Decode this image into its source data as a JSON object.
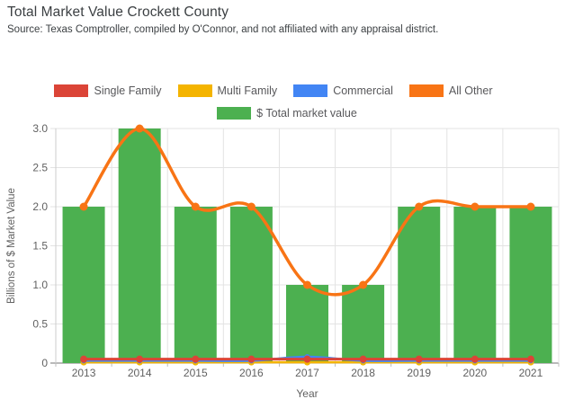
{
  "header": {
    "title": "Total Market Value Crockett County",
    "source": "Source: Texas Comptroller, compiled by O'Connor, and not affiliated with any appraisal district."
  },
  "legend": {
    "row1": [
      {
        "label": "Single Family",
        "color": "#DB4437"
      },
      {
        "label": "Multi Family",
        "color": "#F4B400"
      },
      {
        "label": "Commercial",
        "color": "#4285F4"
      },
      {
        "label": "All Other",
        "color": "#F87415"
      }
    ],
    "row2": [
      {
        "label": "$ Total market value",
        "color": "#4CB050"
      }
    ]
  },
  "chart_data": {
    "type": "combo-bar-line",
    "title": "Total Market Value Crockett County",
    "categories": [
      "2013",
      "2014",
      "2015",
      "2016",
      "2017",
      "2018",
      "2019",
      "2020",
      "2021"
    ],
    "bar_series": {
      "name": "$ Total market value",
      "color": "#4CB050",
      "values": [
        2.0,
        3.0,
        2.0,
        2.0,
        1.0,
        1.0,
        2.0,
        2.0,
        2.0
      ]
    },
    "line_series": [
      {
        "name": "Multi Family",
        "color": "#F4B400",
        "values": [
          0.01,
          0.01,
          0.01,
          0.01,
          0.01,
          0.01,
          0.01,
          0.01,
          0.01
        ]
      },
      {
        "name": "Commercial",
        "color": "#4285F4",
        "values": [
          0.03,
          0.03,
          0.03,
          0.03,
          0.08,
          0.03,
          0.03,
          0.03,
          0.03
        ]
      },
      {
        "name": "Single Family",
        "color": "#DB4437",
        "values": [
          0.05,
          0.05,
          0.05,
          0.05,
          0.05,
          0.05,
          0.05,
          0.05,
          0.05
        ]
      },
      {
        "name": "All Other",
        "color": "#F87415",
        "values": [
          2.0,
          3.0,
          2.0,
          2.0,
          1.0,
          1.0,
          2.0,
          2.0,
          2.0
        ]
      }
    ],
    "xlabel": "Year",
    "ylabel": "Billions of $ Market Value",
    "ylim": [
      0,
      3
    ],
    "ytick_values": [
      0,
      0.5,
      1,
      1.5,
      2,
      2.5,
      3
    ],
    "ytick_labels": [
      "0",
      "0.5",
      "1.0",
      "1.5",
      "2.0",
      "2.5",
      "3.0"
    ],
    "grid": true,
    "legend_position": "top",
    "line_smoothing": "spline"
  }
}
